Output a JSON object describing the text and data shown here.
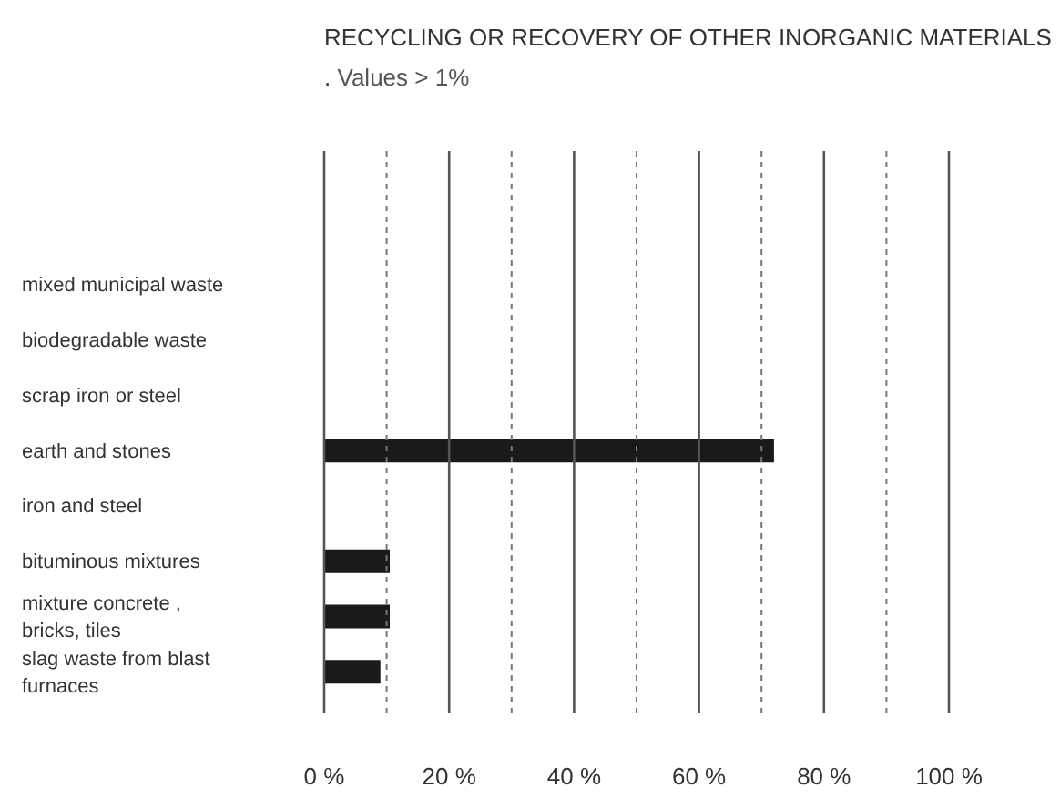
{
  "chart_data": {
    "type": "bar",
    "orientation": "horizontal",
    "title": "RECYCLING OR RECOVERY OF OTHER INORGANIC MATERIALS .",
    "subtitle": "Values > 1%",
    "categories": [
      "mixed municipal waste",
      "biodegradable waste",
      "scrap iron or steel",
      "earth and stones",
      "iron and steel",
      "bituminous mixtures",
      "mixture concrete , bricks, tiles",
      "slag waste from blast furnaces"
    ],
    "values": [
      null,
      null,
      null,
      72,
      null,
      10.5,
      10.5,
      9
    ],
    "color": "#1a1a1a",
    "xlim": [
      0,
      100
    ],
    "xticks": [
      {
        "value": 0,
        "label": "0 %"
      },
      {
        "value": 10,
        "label": null
      },
      {
        "value": 20,
        "label": "20 %"
      },
      {
        "value": 30,
        "label": null
      },
      {
        "value": 40,
        "label": "40 %"
      },
      {
        "value": 50,
        "label": null
      },
      {
        "value": 60,
        "label": "60 %"
      },
      {
        "value": 70,
        "label": null
      },
      {
        "value": 80,
        "label": "80 %"
      },
      {
        "value": 90,
        "label": null
      },
      {
        "value": 100,
        "label": "100 %"
      }
    ],
    "grid": "x"
  }
}
